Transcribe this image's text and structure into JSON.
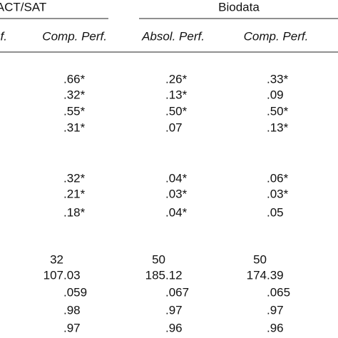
{
  "table": {
    "group_headers": [
      "ACT/SAT",
      "Biodata"
    ],
    "subheaders": [
      "f.",
      "Comp. Perf.",
      "Absol. Perf.",
      "Comp. Perf."
    ],
    "rows": [
      [
        ".66*",
        ".26*",
        ".33*"
      ],
      [
        ".32*",
        ".13*",
        ".09"
      ],
      [
        ".55*",
        ".50*",
        ".50*"
      ],
      [
        ".31*",
        ".07",
        ".13*"
      ],
      [
        ".32*",
        ".04*",
        ".06*"
      ],
      [
        ".21*",
        ".03*",
        ".03*"
      ],
      [
        ".18*",
        ".04*",
        ".05"
      ],
      [
        "32",
        "50",
        "50"
      ],
      [
        "107.03",
        "185.12",
        "174.39"
      ],
      [
        ".059",
        ".067",
        ".065"
      ],
      [
        ".98",
        ".97",
        ".97"
      ],
      [
        ".97",
        ".96",
        ".96"
      ]
    ]
  }
}
